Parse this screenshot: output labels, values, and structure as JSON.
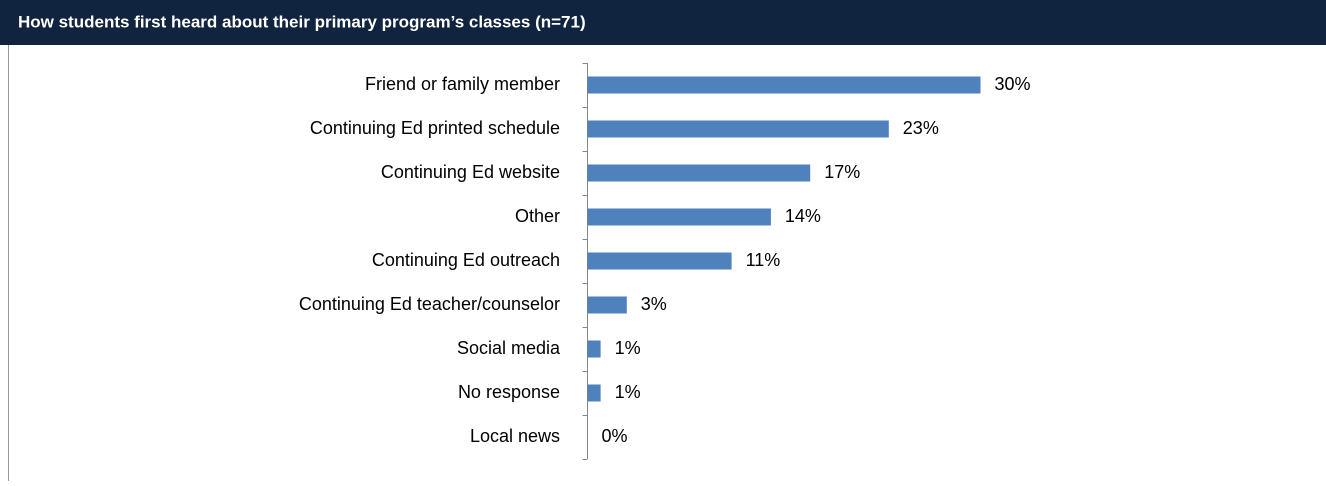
{
  "chart_data": {
    "type": "bar",
    "orientation": "horizontal",
    "title": "How students first heard about their primary program’s classes (n=71)",
    "categories": [
      "Friend or family member",
      "Continuing Ed printed schedule",
      "Continuing Ed website",
      "Other",
      "Continuing Ed outreach",
      "Continuing Ed teacher/counselor",
      "Social media",
      "No response",
      "Local news"
    ],
    "values": [
      30,
      23,
      17,
      14,
      11,
      3,
      1,
      1,
      0
    ],
    "value_labels": [
      "30%",
      "23%",
      "17%",
      "14%",
      "11%",
      "3%",
      "1%",
      "1%",
      "0%"
    ],
    "color": "#4f81bd"
  }
}
